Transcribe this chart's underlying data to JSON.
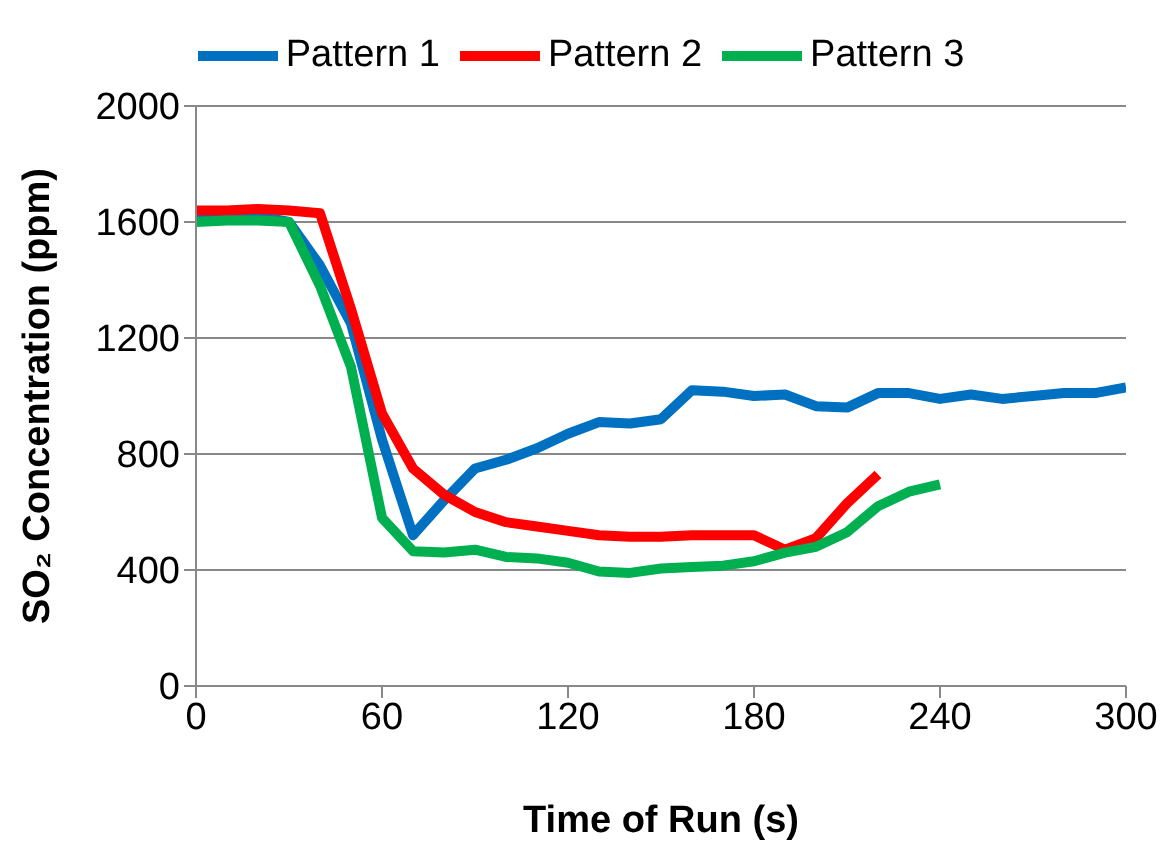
{
  "chart_data": {
    "type": "line",
    "xlabel": "Time of Run (s)",
    "ylabel": "SO₂ Concentration (ppm)",
    "xlim": [
      0,
      300
    ],
    "xticks": [
      0,
      60,
      120,
      180,
      240,
      300
    ],
    "ylim": [
      0,
      2000
    ],
    "yticks": [
      0,
      400,
      800,
      1200,
      1600,
      2000
    ],
    "grid": "y",
    "legend": "top",
    "marker": "none",
    "line_style": "solid",
    "series": [
      {
        "name": "Pattern 1",
        "color": "#0070c0",
        "x": [
          0,
          10,
          20,
          30,
          40,
          50,
          60,
          70,
          80,
          90,
          100,
          110,
          120,
          130,
          140,
          150,
          160,
          170,
          180,
          190,
          200,
          210,
          220,
          230,
          240,
          250,
          260,
          270,
          280,
          290,
          300
        ],
        "values": [
          1620,
          1620,
          1620,
          1600,
          1450,
          1250,
          850,
          520,
          640,
          750,
          780,
          820,
          870,
          910,
          905,
          920,
          1020,
          1015,
          1000,
          1005,
          965,
          960,
          1010,
          1010,
          990,
          1005,
          990,
          1000,
          1010,
          1010,
          1030
        ]
      },
      {
        "name": "Pattern 2",
        "color": "#ff0000",
        "x": [
          0,
          10,
          20,
          30,
          40,
          50,
          60,
          70,
          80,
          90,
          100,
          110,
          120,
          130,
          140,
          150,
          160,
          170,
          180,
          190,
          200,
          210,
          220
        ],
        "values": [
          1640,
          1640,
          1645,
          1640,
          1630,
          1300,
          940,
          750,
          660,
          600,
          565,
          550,
          535,
          520,
          515,
          515,
          520,
          520,
          520,
          470,
          510,
          630,
          730
        ]
      },
      {
        "name": "Pattern 3",
        "color": "#00b050",
        "x": [
          0,
          10,
          20,
          30,
          40,
          50,
          60,
          70,
          80,
          90,
          100,
          110,
          120,
          130,
          140,
          150,
          160,
          170,
          180,
          190,
          200,
          210,
          220,
          230,
          240
        ],
        "values": [
          1600,
          1605,
          1605,
          1600,
          1380,
          1100,
          580,
          465,
          460,
          470,
          445,
          440,
          425,
          395,
          390,
          405,
          410,
          415,
          430,
          460,
          480,
          530,
          620,
          670,
          695
        ]
      }
    ]
  }
}
